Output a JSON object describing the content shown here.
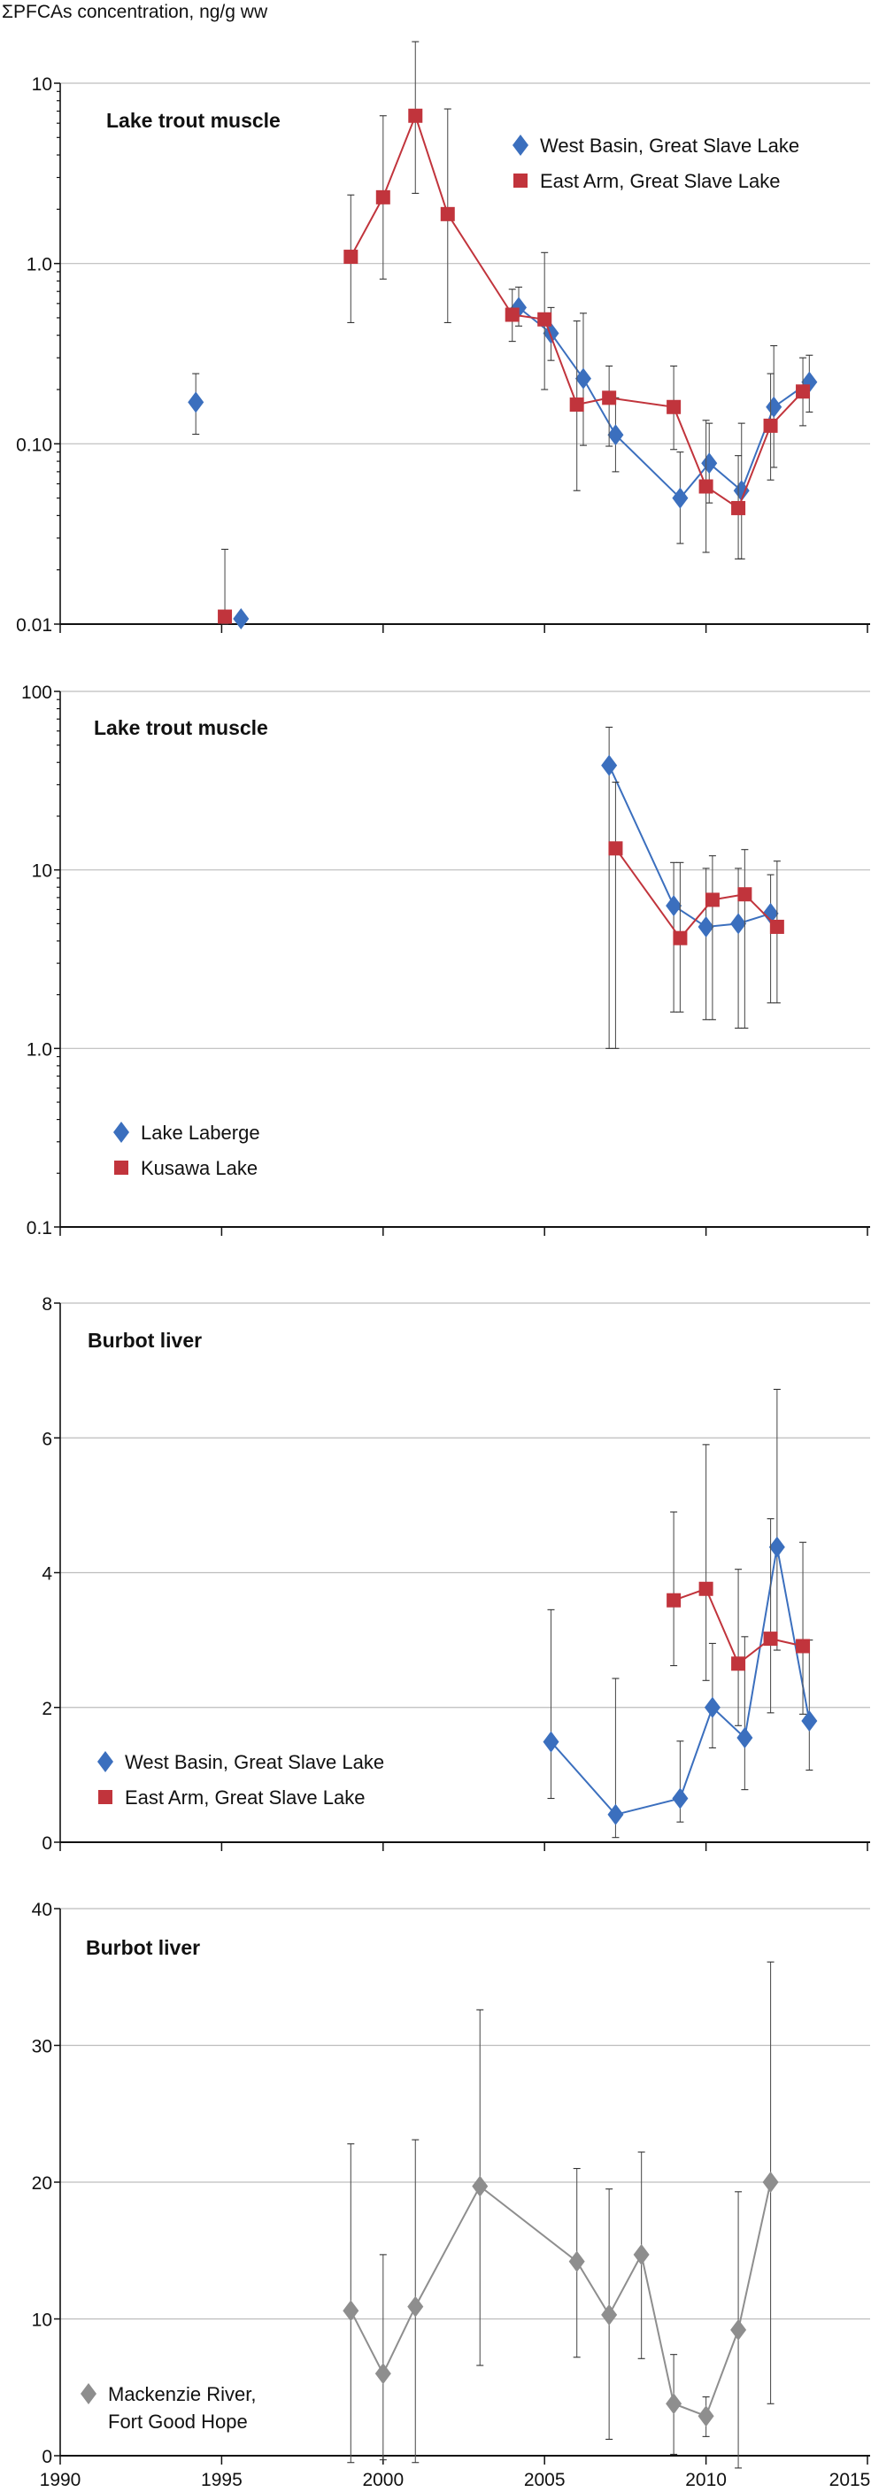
{
  "chart_data": {
    "type": "line",
    "ylabel": "ΣPFCAs concentration, ng/g ww",
    "xlim": [
      1990,
      2015
    ],
    "x_ticks": [
      "1990",
      "1995",
      "2000",
      "2005",
      "2010",
      "2015"
    ],
    "x_tick_values": [
      1990,
      1995,
      2000,
      2005,
      2010,
      2015
    ],
    "colors": {
      "blue": "#3b6fbe",
      "red": "#c1343c",
      "gray": "#8e8e8e"
    },
    "panels": [
      {
        "title": "Lake trout muscle",
        "scale": "log",
        "ylim": [
          0.01,
          10
        ],
        "y_ticks": [
          "0.01",
          "0.10",
          "1.0",
          "10"
        ],
        "y_tick_values": [
          0.01,
          0.1,
          1,
          10
        ],
        "series": [
          {
            "name": "West Basin, Great Slave Lake",
            "marker": "diamond",
            "color": "#3b6fbe",
            "points": [
              {
                "x": 1994.2,
                "y": 0.17,
                "lo": 0.113,
                "hi": 0.245,
                "connected": false
              },
              {
                "x": 1995.6,
                "y": 0.0107,
                "connected": false
              },
              {
                "x": 2004.2,
                "y": 0.57,
                "lo": 0.45,
                "hi": 0.74
              },
              {
                "x": 2005.2,
                "y": 0.41,
                "lo": 0.29,
                "hi": 0.57
              },
              {
                "x": 2006.2,
                "y": 0.23,
                "lo": 0.098,
                "hi": 0.53
              },
              {
                "x": 2007.2,
                "y": 0.112,
                "lo": 0.07,
                "hi": 0.18
              },
              {
                "x": 2009.2,
                "y": 0.05,
                "lo": 0.028,
                "hi": 0.09
              },
              {
                "x": 2010.1,
                "y": 0.078,
                "lo": 0.047,
                "hi": 0.13
              },
              {
                "x": 2011.1,
                "y": 0.055,
                "lo": 0.023,
                "hi": 0.13
              },
              {
                "x": 2012.1,
                "y": 0.16,
                "lo": 0.074,
                "hi": 0.35
              },
              {
                "x": 2013.2,
                "y": 0.22,
                "lo": 0.15,
                "hi": 0.31
              }
            ]
          },
          {
            "name": "East Arm, Great Slave Lake",
            "marker": "square",
            "color": "#c1343c",
            "points": [
              {
                "x": 1995.1,
                "y": 0.011,
                "lo": 0.01,
                "hi": 0.026,
                "connected": false
              },
              {
                "x": 1999,
                "y": 1.09,
                "lo": 0.47,
                "hi": 2.4
              },
              {
                "x": 2000,
                "y": 2.33,
                "lo": 0.82,
                "hi": 6.6
              },
              {
                "x": 2001,
                "y": 6.6,
                "lo": 2.45,
                "hi": 17
              },
              {
                "x": 2002,
                "y": 1.88,
                "lo": 0.47,
                "hi": 7.2
              },
              {
                "x": 2004,
                "y": 0.52,
                "lo": 0.37,
                "hi": 0.72
              },
              {
                "x": 2005,
                "y": 0.49,
                "lo": 0.2,
                "hi": 1.15
              },
              {
                "x": 2006,
                "y": 0.165,
                "lo": 0.055,
                "hi": 0.48
              },
              {
                "x": 2007,
                "y": 0.18,
                "lo": 0.097,
                "hi": 0.27
              },
              {
                "x": 2009,
                "y": 0.16,
                "lo": 0.093,
                "hi": 0.27
              },
              {
                "x": 2010,
                "y": 0.058,
                "lo": 0.025,
                "hi": 0.135
              },
              {
                "x": 2011,
                "y": 0.044,
                "lo": 0.023,
                "hi": 0.086
              },
              {
                "x": 2012,
                "y": 0.126,
                "lo": 0.063,
                "hi": 0.245
              },
              {
                "x": 2013,
                "y": 0.195,
                "lo": 0.126,
                "hi": 0.3
              }
            ]
          }
        ]
      },
      {
        "title": "Lake trout muscle",
        "scale": "log",
        "ylim": [
          0.1,
          100
        ],
        "y_ticks": [
          "0.1",
          "1.0",
          "10",
          "100"
        ],
        "y_tick_values": [
          0.1,
          1,
          10,
          100
        ],
        "series": [
          {
            "name": "Lake Laberge",
            "marker": "diamond",
            "color": "#3b6fbe",
            "points": [
              {
                "x": 2007,
                "y": 38.5,
                "lo": 1.0,
                "hi": 63
              },
              {
                "x": 2009,
                "y": 6.3,
                "lo": 1.6,
                "hi": 11
              },
              {
                "x": 2010,
                "y": 4.8,
                "lo": 1.45,
                "hi": 10.2
              },
              {
                "x": 2011,
                "y": 5.0,
                "lo": 1.3,
                "hi": 10.2
              },
              {
                "x": 2012,
                "y": 5.7,
                "lo": 1.8,
                "hi": 9.4
              }
            ]
          },
          {
            "name": "Kusawa Lake",
            "marker": "square",
            "color": "#c1343c",
            "points": [
              {
                "x": 2007.2,
                "y": 13.2,
                "lo": 1.0,
                "hi": 31
              },
              {
                "x": 2009.2,
                "y": 4.15,
                "lo": 1.6,
                "hi": 11
              },
              {
                "x": 2010.2,
                "y": 6.8,
                "lo": 1.45,
                "hi": 12
              },
              {
                "x": 2011.2,
                "y": 7.3,
                "lo": 1.3,
                "hi": 13
              },
              {
                "x": 2012.2,
                "y": 4.8,
                "lo": 1.8,
                "hi": 11.2
              }
            ]
          }
        ]
      },
      {
        "title": "Burbot liver",
        "scale": "linear",
        "ylim": [
          0,
          8
        ],
        "y_ticks": [
          "0",
          "2",
          "4",
          "6",
          "8"
        ],
        "y_tick_values": [
          0,
          2,
          4,
          6,
          8
        ],
        "series": [
          {
            "name": "West Basin, Great Slave Lake",
            "marker": "diamond",
            "color": "#3b6fbe",
            "points": [
              {
                "x": 2005.2,
                "y": 1.49,
                "lo": 0.65,
                "hi": 3.45
              },
              {
                "x": 2007.2,
                "y": 0.41,
                "lo": 0.07,
                "hi": 2.43
              },
              {
                "x": 2009.2,
                "y": 0.65,
                "lo": 0.3,
                "hi": 1.5
              },
              {
                "x": 2010.2,
                "y": 2.0,
                "lo": 1.4,
                "hi": 2.95
              },
              {
                "x": 2011.2,
                "y": 1.55,
                "lo": 0.78,
                "hi": 3.05
              },
              {
                "x": 2012.2,
                "y": 4.38,
                "lo": 2.85,
                "hi": 6.72
              },
              {
                "x": 2013.2,
                "y": 1.8,
                "lo": 1.07,
                "hi": 3.0
              }
            ]
          },
          {
            "name": "East Arm, Great Slave Lake",
            "marker": "square",
            "color": "#c1343c",
            "points": [
              {
                "x": 2009,
                "y": 3.59,
                "lo": 2.62,
                "hi": 4.9
              },
              {
                "x": 2010,
                "y": 3.76,
                "lo": 2.4,
                "hi": 5.9
              },
              {
                "x": 2011,
                "y": 2.65,
                "lo": 1.73,
                "hi": 4.05
              },
              {
                "x": 2012,
                "y": 3.02,
                "lo": 1.92,
                "hi": 4.8
              },
              {
                "x": 2013,
                "y": 2.91,
                "lo": 1.9,
                "hi": 4.45
              }
            ]
          }
        ]
      },
      {
        "title": "Burbot liver",
        "scale": "linear",
        "ylim": [
          0,
          40
        ],
        "y_ticks": [
          "0",
          "10",
          "20",
          "30",
          "40"
        ],
        "y_tick_values": [
          0,
          10,
          20,
          30,
          40
        ],
        "series": [
          {
            "name": "Mackenzie River, Fort Good Hope",
            "legend_lines": [
              "Mackenzie River,",
              "Fort Good Hope"
            ],
            "marker": "diamond",
            "color": "#8e8e8e",
            "points": [
              {
                "x": 1999,
                "y": 10.6,
                "lo": -0.5,
                "hi": 22.8
              },
              {
                "x": 2000,
                "y": 6.0,
                "lo": -0.3,
                "hi": 14.7
              },
              {
                "x": 2001,
                "y": 10.9,
                "lo": -0.5,
                "hi": 23.1
              },
              {
                "x": 2003,
                "y": 19.7,
                "lo": 6.6,
                "hi": 32.6
              },
              {
                "x": 2006,
                "y": 14.2,
                "lo": 7.2,
                "hi": 21
              },
              {
                "x": 2007,
                "y": 10.3,
                "lo": 1.2,
                "hi": 19.5
              },
              {
                "x": 2008,
                "y": 14.7,
                "lo": 7.1,
                "hi": 22.2
              },
              {
                "x": 2009,
                "y": 3.8,
                "lo": 0.1,
                "hi": 7.4
              },
              {
                "x": 2010,
                "y": 2.9,
                "lo": 1.4,
                "hi": 4.3
              },
              {
                "x": 2011,
                "y": 9.2,
                "lo": -0.9,
                "hi": 19.3
              },
              {
                "x": 2012,
                "y": 20.0,
                "lo": 3.8,
                "hi": 36.1
              }
            ]
          }
        ]
      }
    ]
  }
}
